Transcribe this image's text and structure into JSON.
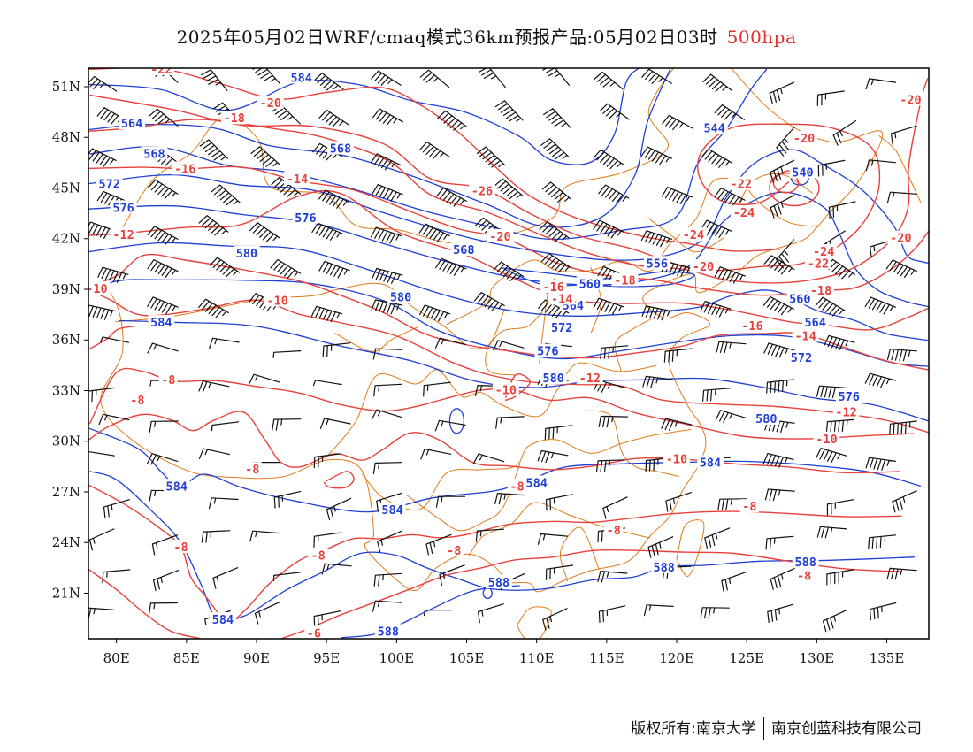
{
  "title": {
    "main": "2025年05月02日WRF/cmaq模式36km预报产品:05月02日03时",
    "level": "500hpa"
  },
  "colors": {
    "temperature": "#e8413c",
    "height": "#1f3fd6",
    "border": "#e07b1a",
    "wind": "#111111",
    "level_text": "#e03030"
  },
  "axes": {
    "lon_labels": [
      "80E",
      "85E",
      "90E",
      "95E",
      "100E",
      "105E",
      "110E",
      "115E",
      "120E",
      "125E",
      "130E",
      "135E"
    ],
    "lat_labels": [
      "51N",
      "48N",
      "45N",
      "42N",
      "39N",
      "36N",
      "33N",
      "30N",
      "27N",
      "24N",
      "21N"
    ],
    "lon_range": [
      78,
      138
    ],
    "lat_range": [
      18.3,
      52.1
    ]
  },
  "height_labels": [
    {
      "text": "584",
      "lon": 93.2,
      "lat": 51.5
    },
    {
      "text": "564",
      "lon": 81.1,
      "lat": 48.8
    },
    {
      "text": "568",
      "lon": 82.7,
      "lat": 47.0
    },
    {
      "text": "572",
      "lon": 79.5,
      "lat": 45.2
    },
    {
      "text": "576",
      "lon": 80.5,
      "lat": 43.8
    },
    {
      "text": "576",
      "lon": 93.5,
      "lat": 43.2
    },
    {
      "text": "568",
      "lon": 96.0,
      "lat": 47.3
    },
    {
      "text": "580",
      "lon": 89.3,
      "lat": 41.1
    },
    {
      "text": "584",
      "lon": 83.2,
      "lat": 37.0
    },
    {
      "text": "580",
      "lon": 100.3,
      "lat": 38.5
    },
    {
      "text": "568",
      "lon": 104.8,
      "lat": 41.3
    },
    {
      "text": "556",
      "lon": 118.6,
      "lat": 40.5
    },
    {
      "text": "560",
      "lon": 113.8,
      "lat": 39.3
    },
    {
      "text": "564",
      "lon": 112.6,
      "lat": 38.0
    },
    {
      "text": "572",
      "lon": 111.8,
      "lat": 36.7
    },
    {
      "text": "576",
      "lon": 110.8,
      "lat": 35.3
    },
    {
      "text": "580",
      "lon": 111.2,
      "lat": 33.7
    },
    {
      "text": "544",
      "lon": 122.7,
      "lat": 48.5
    },
    {
      "text": "540",
      "lon": 129.0,
      "lat": 45.9
    },
    {
      "text": "560",
      "lon": 128.8,
      "lat": 38.4
    },
    {
      "text": "564",
      "lon": 129.9,
      "lat": 37.0
    },
    {
      "text": "572",
      "lon": 128.9,
      "lat": 34.9
    },
    {
      "text": "576",
      "lon": 132.3,
      "lat": 32.6
    },
    {
      "text": "580",
      "lon": 126.4,
      "lat": 31.3
    },
    {
      "text": "584",
      "lon": 122.4,
      "lat": 28.7
    },
    {
      "text": "584",
      "lon": 110.0,
      "lat": 27.5
    },
    {
      "text": "584",
      "lon": 84.3,
      "lat": 27.3
    },
    {
      "text": "584",
      "lon": 99.7,
      "lat": 25.9
    },
    {
      "text": "584",
      "lon": 87.6,
      "lat": 19.4
    },
    {
      "text": "588",
      "lon": 107.3,
      "lat": 21.6
    },
    {
      "text": "588",
      "lon": 119.1,
      "lat": 22.5
    },
    {
      "text": "588",
      "lon": 129.2,
      "lat": 22.8
    },
    {
      "text": "588",
      "lon": 99.4,
      "lat": 18.7
    }
  ],
  "temperature_labels": [
    {
      "text": "-22",
      "lon": 83.2,
      "lat": 52.0
    },
    {
      "text": "-20",
      "lon": 91.0,
      "lat": 50.0
    },
    {
      "text": "-18",
      "lon": 88.4,
      "lat": 49.1
    },
    {
      "text": "-16",
      "lon": 84.9,
      "lat": 46.1
    },
    {
      "text": "-14",
      "lon": 92.9,
      "lat": 45.5
    },
    {
      "text": "-12",
      "lon": 80.5,
      "lat": 42.2
    },
    {
      "text": "-10",
      "lon": 78.6,
      "lat": 39.0
    },
    {
      "text": "-10",
      "lon": 91.5,
      "lat": 38.3
    },
    {
      "text": "-8",
      "lon": 83.7,
      "lat": 33.6
    },
    {
      "text": "-8",
      "lon": 81.5,
      "lat": 32.4
    },
    {
      "text": "-8",
      "lon": 89.7,
      "lat": 28.3
    },
    {
      "text": "-8",
      "lon": 84.6,
      "lat": 23.7
    },
    {
      "text": "-8",
      "lon": 94.4,
      "lat": 23.2
    },
    {
      "text": "-6",
      "lon": 94.1,
      "lat": 18.6
    },
    {
      "text": "-8",
      "lon": 104.1,
      "lat": 23.5
    },
    {
      "text": "-8",
      "lon": 108.6,
      "lat": 27.3
    },
    {
      "text": "-8",
      "lon": 115.5,
      "lat": 24.7
    },
    {
      "text": "-8",
      "lon": 125.2,
      "lat": 26.1
    },
    {
      "text": "-8",
      "lon": 129.1,
      "lat": 22.0
    },
    {
      "text": "-26",
      "lon": 106.1,
      "lat": 44.8
    },
    {
      "text": "-20",
      "lon": 107.4,
      "lat": 42.1
    },
    {
      "text": "-16",
      "lon": 111.2,
      "lat": 39.1
    },
    {
      "text": "-14",
      "lon": 111.8,
      "lat": 38.4
    },
    {
      "text": "-18",
      "lon": 116.3,
      "lat": 39.5
    },
    {
      "text": "-20",
      "lon": 121.9,
      "lat": 40.3
    },
    {
      "text": "-24",
      "lon": 121.2,
      "lat": 42.2
    },
    {
      "text": "-22",
      "lon": 124.6,
      "lat": 45.2
    },
    {
      "text": "-24",
      "lon": 124.8,
      "lat": 43.5
    },
    {
      "text": "-20",
      "lon": 129.1,
      "lat": 47.9
    },
    {
      "text": "-24",
      "lon": 130.5,
      "lat": 41.2
    },
    {
      "text": "-22",
      "lon": 130.1,
      "lat": 40.5
    },
    {
      "text": "-18",
      "lon": 130.3,
      "lat": 38.9
    },
    {
      "text": "-20",
      "lon": 136.0,
      "lat": 42.0
    },
    {
      "text": "-20",
      "lon": 136.7,
      "lat": 50.2
    },
    {
      "text": "-16",
      "lon": 125.4,
      "lat": 36.8
    },
    {
      "text": "-14",
      "lon": 129.2,
      "lat": 36.2
    },
    {
      "text": "-12",
      "lon": 113.8,
      "lat": 33.7
    },
    {
      "text": "-10",
      "lon": 107.8,
      "lat": 33.0
    },
    {
      "text": "-12",
      "lon": 132.1,
      "lat": 31.7
    },
    {
      "text": "-10",
      "lon": 130.7,
      "lat": 30.1
    },
    {
      "text": "-10",
      "lon": 120.0,
      "lat": 28.9
    }
  ],
  "footer": {
    "copyright": "版权所有:南京大学",
    "company": "南京创蓝科技有限公司"
  }
}
